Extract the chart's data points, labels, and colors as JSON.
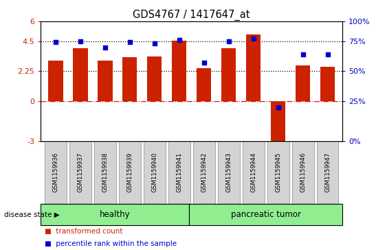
{
  "title": "GDS4767 / 1417647_at",
  "samples": [
    "GSM1159936",
    "GSM1159937",
    "GSM1159938",
    "GSM1159939",
    "GSM1159940",
    "GSM1159941",
    "GSM1159942",
    "GSM1159943",
    "GSM1159944",
    "GSM1159945",
    "GSM1159946",
    "GSM1159947"
  ],
  "bar_values": [
    3.05,
    4.0,
    3.05,
    3.3,
    3.35,
    4.55,
    2.5,
    4.0,
    5.0,
    -3.1,
    2.7,
    2.6
  ],
  "dot_values": [
    4.42,
    4.5,
    4.05,
    4.42,
    4.35,
    4.62,
    2.88,
    4.5,
    4.68,
    -0.45,
    3.5,
    3.5
  ],
  "bar_color": "#CC2200",
  "dot_color": "#0000CC",
  "ylim": [
    -3,
    6
  ],
  "yticks_left": [
    -3,
    0,
    2.25,
    4.5,
    6
  ],
  "ytick_labels_left": [
    "-3",
    "0",
    "2.25",
    "4.5",
    "6"
  ],
  "hlines": [
    {
      "y": 0,
      "ls": "dashdot",
      "color": "#CC2200",
      "lw": 0.9
    },
    {
      "y": 2.25,
      "ls": "dotted",
      "color": "#000000",
      "lw": 0.9
    },
    {
      "y": 4.5,
      "ls": "dotted",
      "color": "#000000",
      "lw": 0.9
    }
  ],
  "right_ytick_positions": [
    -3,
    0,
    2.25,
    4.5,
    6
  ],
  "right_ytick_labels": [
    "0%",
    "25%",
    "50%",
    "75%",
    "100%"
  ],
  "right_color": "#0000CC",
  "healthy_count": 6,
  "tumor_count": 6,
  "healthy_label": "healthy",
  "tumor_label": "pancreatic tumor",
  "disease_state_label": "disease state ▶",
  "legend_bar_label": "transformed count",
  "legend_dot_label": "percentile rank within the sample",
  "bar_color_legend": "#CC2200",
  "dot_color_legend": "#0000CC",
  "group_color": "#90EE90",
  "label_bg_color": "#D3D3D3",
  "label_edge_color": "#999999"
}
